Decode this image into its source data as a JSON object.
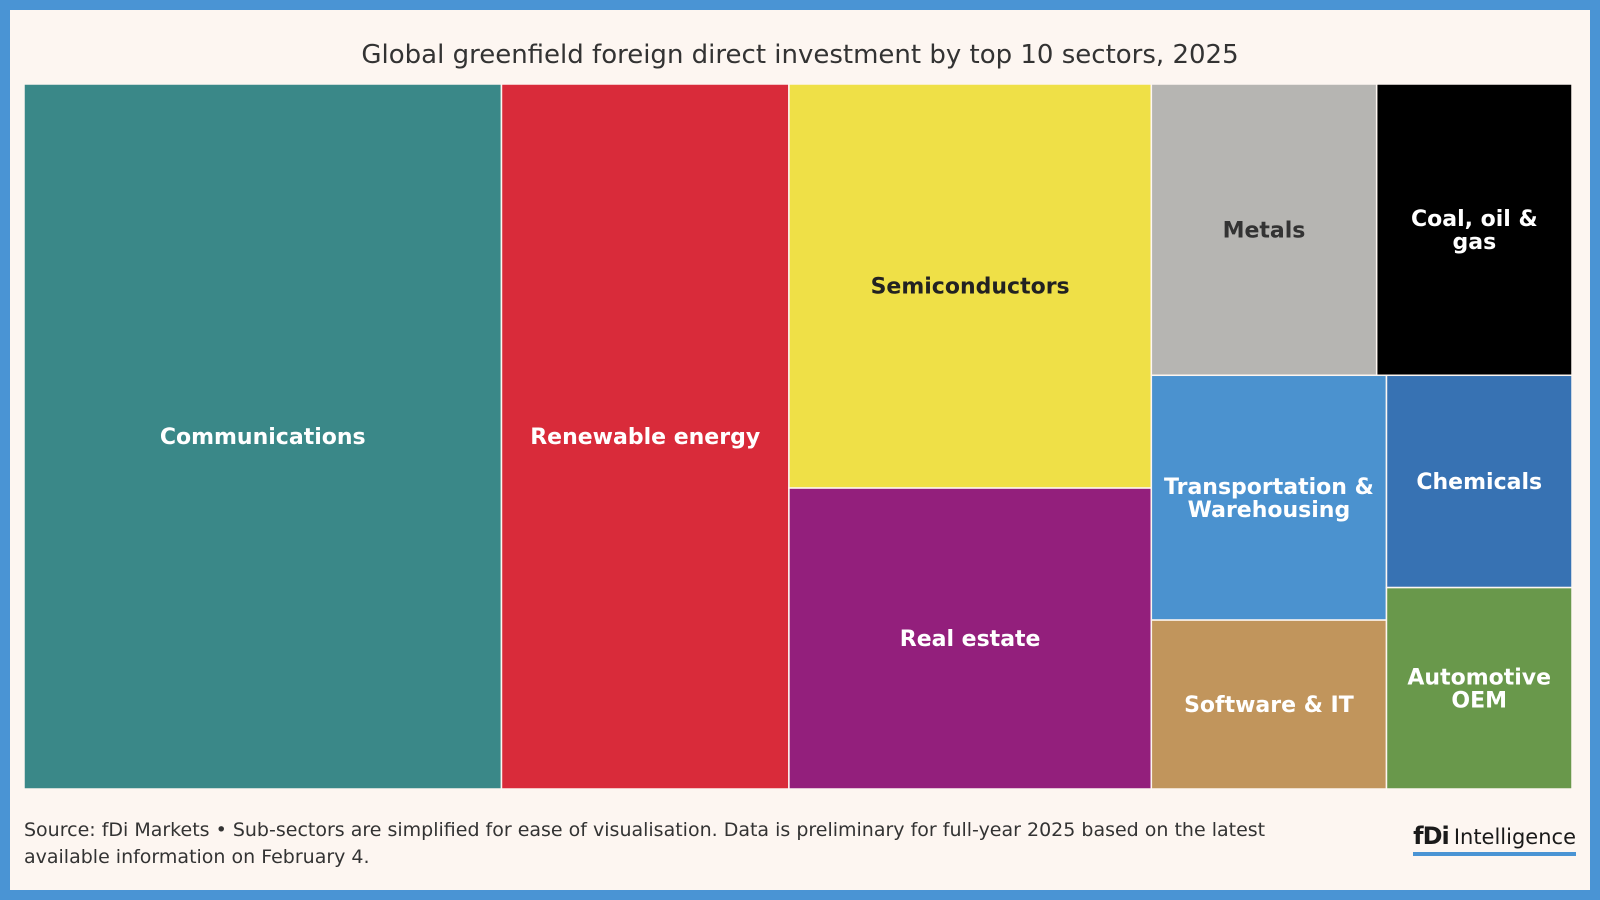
{
  "chart_data": {
    "type": "treemap",
    "title": "Global greenfield foreign direct investment by top 10 sectors, 2025",
    "leaves": [
      {
        "name": "Communications",
        "value": 100,
        "color": "#3a8888",
        "text_color": "#ffffff"
      },
      {
        "name": "Renewable energy",
        "value": 60.2,
        "color": "#d92b3a",
        "text_color": "#ffffff"
      },
      {
        "name": "Semiconductors",
        "value": 43.5,
        "color": "#efe047",
        "text_color": "#222222"
      },
      {
        "name": "Real estate",
        "value": 32.4,
        "color": "#931f7c",
        "text_color": "#ffffff"
      },
      {
        "name": "Metals",
        "value": 19.5,
        "color": "#b6b5b2",
        "text_color": "#333333"
      },
      {
        "name": "Coal, oil & gas",
        "value": 16.9,
        "color": "#000000",
        "text_color": "#ffffff"
      },
      {
        "name": "Transportation & Warehousing",
        "value": 17.1,
        "color": "#4b92cf",
        "text_color": "#ffffff"
      },
      {
        "name": "Software & IT",
        "value": 11.8,
        "color": "#c1955c",
        "text_color": "#ffffff"
      },
      {
        "name": "Chemicals",
        "value": 11.7,
        "color": "#3772b3",
        "text_color": "#ffffff"
      },
      {
        "name": "Automotive OEM",
        "value": 11.1,
        "color": "#69984b",
        "text_color": "#ffffff"
      }
    ]
  },
  "footer": {
    "source": "Source: fDi Markets • Sub-sectors are simplified for ease of visualisation. Data is preliminary for full-year 2025 based on the latest available information on February 4."
  },
  "logo": {
    "mark": "fDi",
    "word": "Intelligence",
    "color": "#4a94d4"
  }
}
